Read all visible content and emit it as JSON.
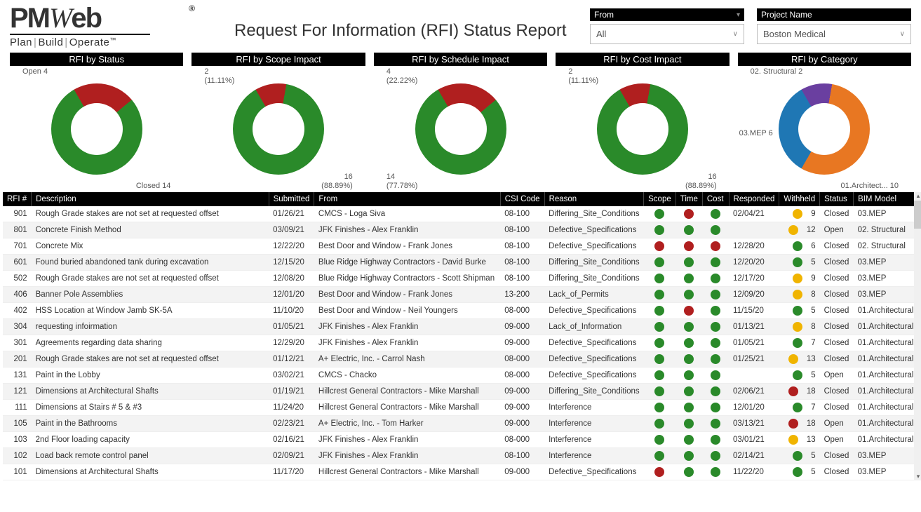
{
  "title": "Request For Information (RFI) Status Report",
  "logo": {
    "brand": "PMWeb",
    "tagline": "Plan|Build|Operate™"
  },
  "filters": {
    "from": {
      "label": "From",
      "value": "All"
    },
    "project": {
      "label": "Project Name",
      "value": "Boston Medical"
    }
  },
  "colors": {
    "green": "#2a8a2a",
    "red": "#b01f1f",
    "yellow": "#f0b400",
    "orange": "#e87722",
    "blue": "#1f77b4",
    "purple": "#6a3fa0"
  },
  "charts": [
    {
      "title": "RFI by Status",
      "slices": [
        {
          "label": "Open",
          "value": 4,
          "pct": null,
          "color": "#b01f1f",
          "pos": "tl"
        },
        {
          "label": "Closed",
          "value": 14,
          "pct": null,
          "color": "#2a8a2a",
          "pos": "br"
        }
      ]
    },
    {
      "title": "RFI by Scope Impact",
      "slices": [
        {
          "label": "",
          "value": 2,
          "pct": "(11.11%)",
          "color": "#b01f1f",
          "pos": "tl"
        },
        {
          "label": "",
          "value": 16,
          "pct": "(88.89%)",
          "color": "#2a8a2a",
          "pos": "br"
        }
      ]
    },
    {
      "title": "RFI by Schedule Impact",
      "slices": [
        {
          "label": "",
          "value": 4,
          "pct": "(22.22%)",
          "color": "#b01f1f",
          "pos": "tl"
        },
        {
          "label": "",
          "value": 14,
          "pct": "(77.78%)",
          "color": "#2a8a2a",
          "pos": "bl"
        }
      ]
    },
    {
      "title": "RFI by Cost Impact",
      "slices": [
        {
          "label": "",
          "value": 2,
          "pct": "(11.11%)",
          "color": "#b01f1f",
          "pos": "tl"
        },
        {
          "label": "",
          "value": 16,
          "pct": "(88.89%)",
          "color": "#2a8a2a",
          "pos": "br"
        }
      ]
    },
    {
      "title": "RFI by Category",
      "slices": [
        {
          "label": "02. Structural",
          "value": 2,
          "pct": null,
          "color": "#6a3fa0",
          "pos": "tl"
        },
        {
          "label": "01.Architect...",
          "value": 10,
          "pct": null,
          "color": "#e87722",
          "pos": "br"
        },
        {
          "label": "03.MEP",
          "value": 6,
          "pct": null,
          "color": "#1f77b4",
          "pos": "ml"
        }
      ]
    }
  ],
  "columns": [
    "RFI #",
    "Description",
    "Submitted",
    "From",
    "CSI Code",
    "Reason",
    "Scope",
    "Time",
    "Cost",
    "Responded",
    "Withheld",
    "Status",
    "BIM Model"
  ],
  "rows": [
    {
      "rfi": "901",
      "desc": "Rough Grade stakes are not set at requested offset",
      "sub": "01/26/21",
      "from": "CMCS - Loga Siva",
      "csi": "08-100",
      "reason": "Differing_Site_Conditions",
      "scope": "g",
      "time": "r",
      "cost": "g",
      "resp": "02/04/21",
      "withDot": "y",
      "with": 9,
      "status": "Closed",
      "bim": "03.MEP"
    },
    {
      "rfi": "801",
      "desc": "Concrete Finish Method",
      "sub": "03/09/21",
      "from": "JFK Finishes - Alex Franklin",
      "csi": "08-100",
      "reason": "Defective_Specifications",
      "scope": "g",
      "time": "g",
      "cost": "g",
      "resp": "",
      "withDot": "y",
      "with": 12,
      "status": "Open",
      "bim": "02. Structural"
    },
    {
      "rfi": "701",
      "desc": "Concrete Mix",
      "sub": "12/22/20",
      "from": "Best Door and Window - Frank Jones",
      "csi": "08-100",
      "reason": "Defective_Specifications",
      "scope": "r",
      "time": "r",
      "cost": "r",
      "resp": "12/28/20",
      "withDot": "g",
      "with": 6,
      "status": "Closed",
      "bim": "02. Structural"
    },
    {
      "rfi": "601",
      "desc": "Found buried abandoned tank during excavation",
      "sub": "12/15/20",
      "from": "Blue Ridge Highway Contractors - David Burke",
      "csi": "08-100",
      "reason": "Differing_Site_Conditions",
      "scope": "g",
      "time": "g",
      "cost": "g",
      "resp": "12/20/20",
      "withDot": "g",
      "with": 5,
      "status": "Closed",
      "bim": "03.MEP"
    },
    {
      "rfi": "502",
      "desc": "Rough Grade stakes are not set at requested offset",
      "sub": "12/08/20",
      "from": "Blue Ridge Highway Contractors - Scott Shipman",
      "csi": "08-100",
      "reason": "Differing_Site_Conditions",
      "scope": "g",
      "time": "g",
      "cost": "g",
      "resp": "12/17/20",
      "withDot": "y",
      "with": 9,
      "status": "Closed",
      "bim": "03.MEP"
    },
    {
      "rfi": "406",
      "desc": "Banner Pole Assemblies",
      "sub": "12/01/20",
      "from": "Best Door and Window - Frank Jones",
      "csi": "13-200",
      "reason": "Lack_of_Permits",
      "scope": "g",
      "time": "g",
      "cost": "g",
      "resp": "12/09/20",
      "withDot": "y",
      "with": 8,
      "status": "Closed",
      "bim": "03.MEP"
    },
    {
      "rfi": "402",
      "desc": "HSS Location at Window Jamb SK-5A",
      "sub": "11/10/20",
      "from": "Best Door and Window - Neil Youngers",
      "csi": "08-000",
      "reason": "Defective_Specifications",
      "scope": "g",
      "time": "r",
      "cost": "g",
      "resp": "11/15/20",
      "withDot": "g",
      "with": 5,
      "status": "Closed",
      "bim": "01.Architectural"
    },
    {
      "rfi": "304",
      "desc": "requesting infoirmation",
      "sub": "01/05/21",
      "from": "JFK Finishes - Alex Franklin",
      "csi": "09-000",
      "reason": "Lack_of_Information",
      "scope": "g",
      "time": "g",
      "cost": "g",
      "resp": "01/13/21",
      "withDot": "y",
      "with": 8,
      "status": "Closed",
      "bim": "01.Architectural"
    },
    {
      "rfi": "301",
      "desc": "Agreements regarding data sharing",
      "sub": "12/29/20",
      "from": "JFK Finishes - Alex Franklin",
      "csi": "09-000",
      "reason": "Defective_Specifications",
      "scope": "g",
      "time": "g",
      "cost": "g",
      "resp": "01/05/21",
      "withDot": "g",
      "with": 7,
      "status": "Closed",
      "bim": "01.Architectural"
    },
    {
      "rfi": "201",
      "desc": "Rough Grade stakes are not set at requested offset",
      "sub": "01/12/21",
      "from": "A+ Electric, Inc. - Carrol Nash",
      "csi": "08-000",
      "reason": "Defective_Specifications",
      "scope": "g",
      "time": "g",
      "cost": "g",
      "resp": "01/25/21",
      "withDot": "y",
      "with": 13,
      "status": "Closed",
      "bim": "01.Architectural"
    },
    {
      "rfi": "131",
      "desc": "Paint in the Lobby",
      "sub": "03/02/21",
      "from": "CMCS - Chacko",
      "csi": "08-000",
      "reason": "Defective_Specifications",
      "scope": "g",
      "time": "g",
      "cost": "g",
      "resp": "",
      "withDot": "g",
      "with": 5,
      "status": "Open",
      "bim": "01.Architectural"
    },
    {
      "rfi": "121",
      "desc": "Dimensions at Architectural Shafts",
      "sub": "01/19/21",
      "from": "Hillcrest General Contractors - Mike Marshall",
      "csi": "09-000",
      "reason": "Differing_Site_Conditions",
      "scope": "g",
      "time": "g",
      "cost": "g",
      "resp": "02/06/21",
      "withDot": "r",
      "with": 18,
      "status": "Closed",
      "bim": "01.Architectural"
    },
    {
      "rfi": "111",
      "desc": "Dimensions at Stairs # 5 & #3",
      "sub": "11/24/20",
      "from": "Hillcrest General Contractors - Mike Marshall",
      "csi": "09-000",
      "reason": "Interference",
      "scope": "g",
      "time": "g",
      "cost": "g",
      "resp": "12/01/20",
      "withDot": "g",
      "with": 7,
      "status": "Closed",
      "bim": "01.Architectural"
    },
    {
      "rfi": "105",
      "desc": "Paint in the Bathrooms",
      "sub": "02/23/21",
      "from": "A+ Electric, Inc. - Tom Harker",
      "csi": "09-000",
      "reason": "Interference",
      "scope": "g",
      "time": "g",
      "cost": "g",
      "resp": "03/13/21",
      "withDot": "r",
      "with": 18,
      "status": "Open",
      "bim": "01.Architectural"
    },
    {
      "rfi": "103",
      "desc": "2nd Floor loading capacity",
      "sub": "02/16/21",
      "from": "JFK Finishes - Alex Franklin",
      "csi": "08-000",
      "reason": "Interference",
      "scope": "g",
      "time": "g",
      "cost": "g",
      "resp": "03/01/21",
      "withDot": "y",
      "with": 13,
      "status": "Open",
      "bim": "01.Architectural"
    },
    {
      "rfi": "102",
      "desc": "Load back remote control panel",
      "sub": "02/09/21",
      "from": "JFK Finishes - Alex Franklin",
      "csi": "08-100",
      "reason": "Interference",
      "scope": "g",
      "time": "g",
      "cost": "g",
      "resp": "02/14/21",
      "withDot": "g",
      "with": 5,
      "status": "Closed",
      "bim": "03.MEP"
    },
    {
      "rfi": "101",
      "desc": "Dimensions at Architectural Shafts",
      "sub": "11/17/20",
      "from": "Hillcrest General Contractors - Mike Marshall",
      "csi": "09-000",
      "reason": "Defective_Specifications",
      "scope": "r",
      "time": "g",
      "cost": "g",
      "resp": "11/22/20",
      "withDot": "g",
      "with": 5,
      "status": "Closed",
      "bim": "03.MEP"
    }
  ]
}
